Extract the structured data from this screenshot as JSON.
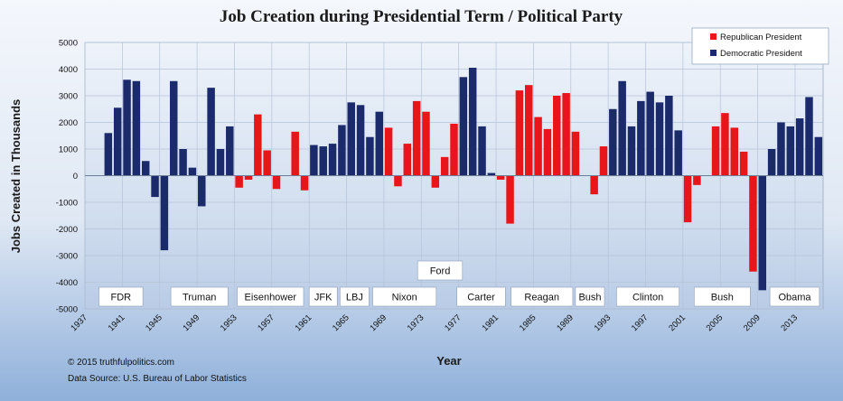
{
  "chart_data": {
    "type": "bar",
    "title": "Job Creation during Presidential Term / Political Party",
    "xlabel": "Year",
    "ylabel": "Jobs Created in Thousands",
    "ylim": [
      -5000,
      5000
    ],
    "yticks": [
      5000,
      4000,
      3000,
      2000,
      1000,
      0,
      -1000,
      -2000,
      -3000,
      -4000,
      -5000
    ],
    "xticks": [
      "1937",
      "1941",
      "1945",
      "1949",
      "1953",
      "1957",
      "1961",
      "1965",
      "1969",
      "1973",
      "1977",
      "1981",
      "1985",
      "1989",
      "1993",
      "1997",
      "2001",
      "2005",
      "2009",
      "2013"
    ],
    "grid": true,
    "legend_position": "top-right",
    "parties": {
      "R": {
        "label": "Republican President",
        "color": "#e8151b"
      },
      "D": {
        "label": "Democratic President",
        "color": "#1b2a6b"
      }
    },
    "bars": [
      {
        "year": 1939,
        "value": 1600,
        "party": "D"
      },
      {
        "year": 1940,
        "value": 2550,
        "party": "D"
      },
      {
        "year": 1941,
        "value": 3600,
        "party": "D"
      },
      {
        "year": 1942,
        "value": 3550,
        "party": "D"
      },
      {
        "year": 1943,
        "value": 550,
        "party": "D"
      },
      {
        "year": 1944,
        "value": -800,
        "party": "D"
      },
      {
        "year": 1945,
        "value": -2800,
        "party": "D"
      },
      {
        "year": 1946,
        "value": 3550,
        "party": "D"
      },
      {
        "year": 1947,
        "value": 1000,
        "party": "D"
      },
      {
        "year": 1948,
        "value": 300,
        "party": "D"
      },
      {
        "year": 1949,
        "value": -1150,
        "party": "D"
      },
      {
        "year": 1950,
        "value": 3300,
        "party": "D"
      },
      {
        "year": 1951,
        "value": 1000,
        "party": "D"
      },
      {
        "year": 1952,
        "value": 1850,
        "party": "D"
      },
      {
        "year": 1953,
        "value": -450,
        "party": "R"
      },
      {
        "year": 1954,
        "value": -150,
        "party": "R"
      },
      {
        "year": 1955,
        "value": 2300,
        "party": "R"
      },
      {
        "year": 1956,
        "value": 950,
        "party": "R"
      },
      {
        "year": 1957,
        "value": -500,
        "party": "R"
      },
      {
        "year": 1959,
        "value": 1650,
        "party": "R"
      },
      {
        "year": 1960,
        "value": -550,
        "party": "R"
      },
      {
        "year": 1961,
        "value": 1150,
        "party": "D"
      },
      {
        "year": 1962,
        "value": 1100,
        "party": "D"
      },
      {
        "year": 1963,
        "value": 1200,
        "party": "D"
      },
      {
        "year": 1964,
        "value": 1900,
        "party": "D"
      },
      {
        "year": 1965,
        "value": 2750,
        "party": "D"
      },
      {
        "year": 1966,
        "value": 2650,
        "party": "D"
      },
      {
        "year": 1967,
        "value": 1450,
        "party": "D"
      },
      {
        "year": 1968,
        "value": 2400,
        "party": "D"
      },
      {
        "year": 1969,
        "value": 1800,
        "party": "R"
      },
      {
        "year": 1970,
        "value": -400,
        "party": "R"
      },
      {
        "year": 1971,
        "value": 1200,
        "party": "R"
      },
      {
        "year": 1972,
        "value": 2800,
        "party": "R"
      },
      {
        "year": 1973,
        "value": 2400,
        "party": "R"
      },
      {
        "year": 1974,
        "value": -450,
        "party": "R"
      },
      {
        "year": 1975,
        "value": 700,
        "party": "R"
      },
      {
        "year": 1976,
        "value": 1950,
        "party": "R"
      },
      {
        "year": 1977,
        "value": 3700,
        "party": "D"
      },
      {
        "year": 1978,
        "value": 4050,
        "party": "D"
      },
      {
        "year": 1979,
        "value": 1850,
        "party": "D"
      },
      {
        "year": 1980,
        "value": 100,
        "party": "D"
      },
      {
        "year": 1981,
        "value": -150,
        "party": "R"
      },
      {
        "year": 1982,
        "value": -1800,
        "party": "R"
      },
      {
        "year": 1983,
        "value": 3200,
        "party": "R"
      },
      {
        "year": 1984,
        "value": 3400,
        "party": "R"
      },
      {
        "year": 1985,
        "value": 2200,
        "party": "R"
      },
      {
        "year": 1986,
        "value": 1750,
        "party": "R"
      },
      {
        "year": 1987,
        "value": 3000,
        "party": "R"
      },
      {
        "year": 1988,
        "value": 3100,
        "party": "R"
      },
      {
        "year": 1989,
        "value": 1650,
        "party": "R"
      },
      {
        "year": 1991,
        "value": -700,
        "party": "R"
      },
      {
        "year": 1992,
        "value": 1100,
        "party": "R"
      },
      {
        "year": 1993,
        "value": 2500,
        "party": "D"
      },
      {
        "year": 1994,
        "value": 3550,
        "party": "D"
      },
      {
        "year": 1995,
        "value": 1850,
        "party": "D"
      },
      {
        "year": 1996,
        "value": 2800,
        "party": "D"
      },
      {
        "year": 1997,
        "value": 3150,
        "party": "D"
      },
      {
        "year": 1998,
        "value": 2750,
        "party": "D"
      },
      {
        "year": 1999,
        "value": 3000,
        "party": "D"
      },
      {
        "year": 2000,
        "value": 1700,
        "party": "D"
      },
      {
        "year": 2001,
        "value": -1750,
        "party": "R"
      },
      {
        "year": 2002,
        "value": -350,
        "party": "R"
      },
      {
        "year": 2004,
        "value": 1850,
        "party": "R"
      },
      {
        "year": 2005,
        "value": 2350,
        "party": "R"
      },
      {
        "year": 2006,
        "value": 1800,
        "party": "R"
      },
      {
        "year": 2007,
        "value": 900,
        "party": "R"
      },
      {
        "year": 2008,
        "value": -3600,
        "party": "R"
      },
      {
        "year": 2009,
        "value": -4300,
        "party": "D"
      },
      {
        "year": 2010,
        "value": 1000,
        "party": "D"
      },
      {
        "year": 2011,
        "value": 2000,
        "party": "D"
      },
      {
        "year": 2012,
        "value": 1850,
        "party": "D"
      },
      {
        "year": 2013,
        "value": 2150,
        "party": "D"
      },
      {
        "year": 2014,
        "value": 2950,
        "party": "D"
      },
      {
        "year": 2015,
        "value": 1450,
        "party": "D"
      }
    ],
    "presidents": [
      {
        "name": "FDR",
        "start": 1938.5,
        "end": 1943.2,
        "raised": false
      },
      {
        "name": "Truman",
        "start": 1946.2,
        "end": 1952.3,
        "raised": false
      },
      {
        "name": "Eisenhower",
        "start": 1953.3,
        "end": 1960.4,
        "raised": false
      },
      {
        "name": "JFK",
        "start": 1961.0,
        "end": 1964.0,
        "raised": false
      },
      {
        "name": "LBJ",
        "start": 1964.3,
        "end": 1967.4,
        "raised": false
      },
      {
        "name": "Nixon",
        "start": 1967.8,
        "end": 1974.6,
        "raised": false
      },
      {
        "name": "Ford",
        "start": 1972.6,
        "end": 1977.4,
        "raised": true
      },
      {
        "name": "Carter",
        "start": 1976.8,
        "end": 1982.0,
        "raised": false
      },
      {
        "name": "Reagan",
        "start": 1982.6,
        "end": 1989.2,
        "raised": false
      },
      {
        "name": "Bush",
        "start": 1989.5,
        "end": 1992.6,
        "raised": false
      },
      {
        "name": "Clinton",
        "start": 1993.9,
        "end": 2000.6,
        "raised": false
      },
      {
        "name": "Bush",
        "start": 2002.2,
        "end": 2008.2,
        "raised": false
      },
      {
        "name": "Obama",
        "start": 2010.3,
        "end": 2015.6,
        "raised": false
      }
    ]
  },
  "credits": {
    "copyright": "© 2015 truthfulpolitics.com",
    "source": "Data Source:  U.S. Bureau of Labor Statistics"
  }
}
